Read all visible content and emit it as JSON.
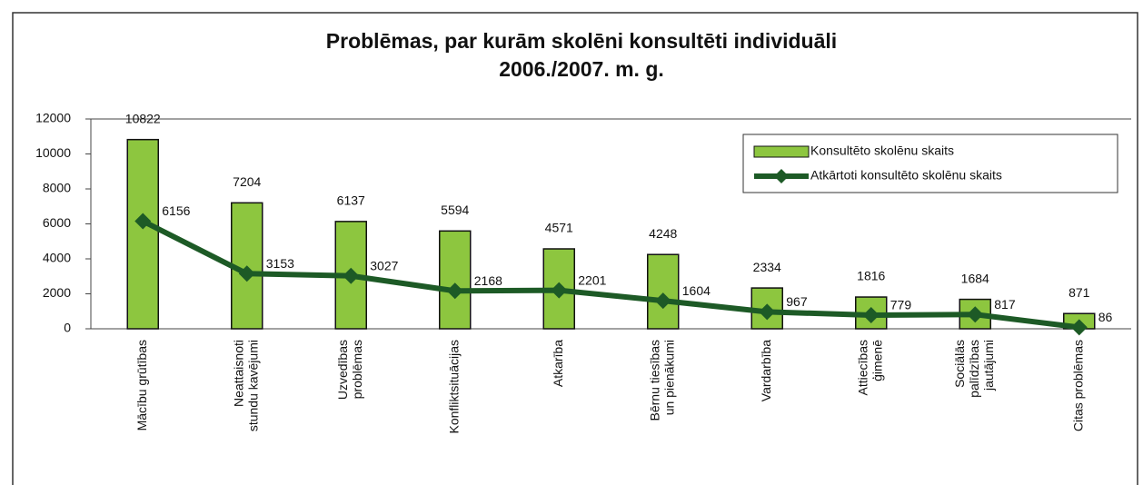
{
  "chart_data": {
    "type": "bar",
    "title": [
      "Problēmas, par kurām skolēni konsultēti individuāli",
      "2006./2007. m. g."
    ],
    "categories": [
      [
        "Mācību grūtības"
      ],
      [
        "Neattaisnoti",
        "stundu kavējumi"
      ],
      [
        "Uzvedības",
        "problēmas"
      ],
      [
        "Konfliktsituācijas"
      ],
      [
        "Atkarība"
      ],
      [
        "Bērnu tiesības",
        "un pienākumi"
      ],
      [
        "Vardarbība"
      ],
      [
        "Attiecības",
        "ģimenē"
      ],
      [
        "Sociālās",
        "palīdzības",
        "jautājumi"
      ],
      [
        "Citas problēmas"
      ]
    ],
    "series": [
      {
        "name": "Konsultēto skolēnu skaits",
        "type": "bar",
        "color": "#8dc63f",
        "values": [
          10822,
          7204,
          6137,
          5594,
          4571,
          4248,
          2334,
          1816,
          1684,
          871
        ]
      },
      {
        "name": "Atkārtoti konsultēto skolēnu skaits",
        "type": "line",
        "color": "#1d5a26",
        "values": [
          6156,
          3153,
          3027,
          2168,
          2201,
          1604,
          967,
          779,
          817,
          86
        ]
      }
    ],
    "ylim": [
      0,
      12000
    ],
    "yticks": [
      0,
      2000,
      4000,
      6000,
      8000,
      10000,
      12000
    ],
    "grid": false,
    "legend": "upper right"
  }
}
